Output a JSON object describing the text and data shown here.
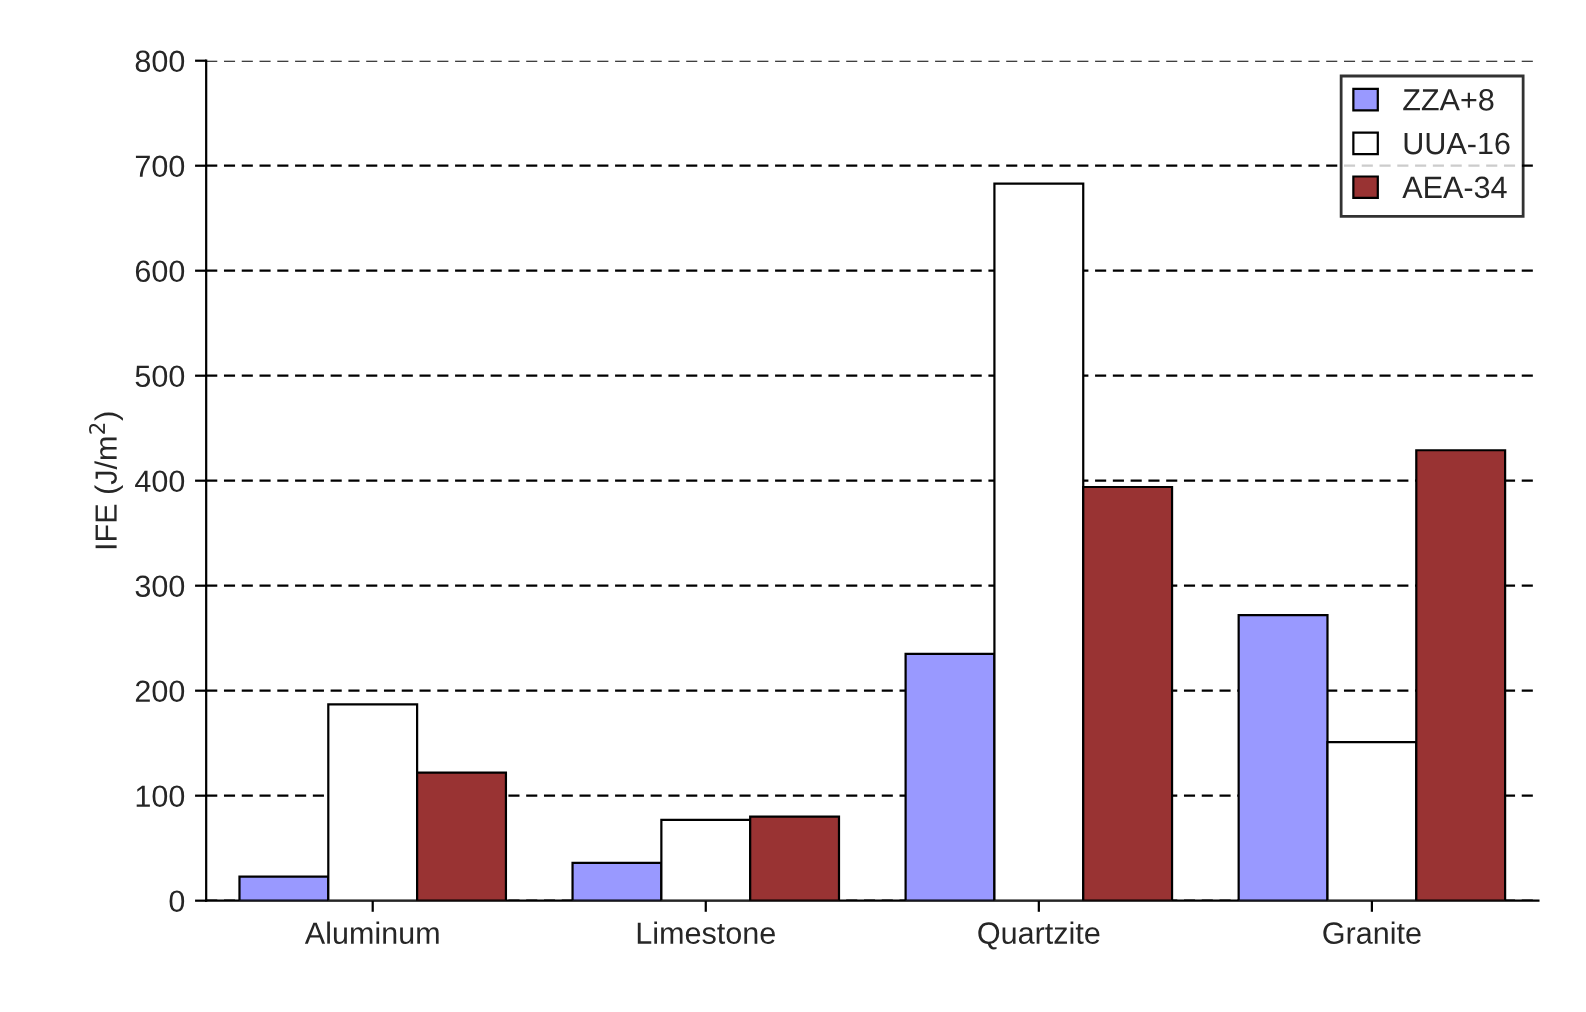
{
  "chart_data": {
    "type": "bar",
    "ylabel": "IFE (J/m$^{2}$)",
    "categories": [
      "Aluminum",
      "Limestone",
      "Quartzite",
      "Granite"
    ],
    "series": [
      {
        "name": "ZZA+8",
        "color": "#9999ff",
        "values": [
          23,
          36,
          235,
          272
        ]
      },
      {
        "name": "UUA-16",
        "color": "#ffffff",
        "values": [
          187,
          77,
          683,
          151
        ]
      },
      {
        "name": "AEA-34",
        "color": "#993333",
        "values": [
          122,
          80,
          394,
          429
        ]
      }
    ],
    "ylim": [
      0,
      800
    ],
    "yticks": [
      0,
      100,
      200,
      300,
      400,
      500,
      600,
      700,
      800
    ],
    "grid": "y",
    "legend": "top right"
  }
}
